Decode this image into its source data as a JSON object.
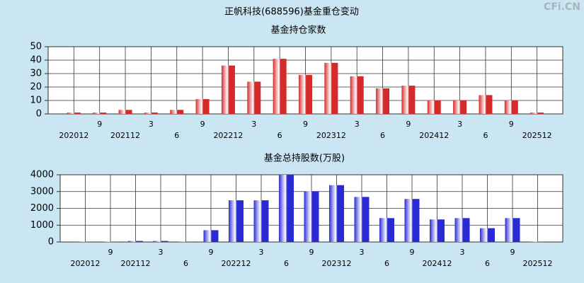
{
  "title": "正帆科技(688596)基金重仓变动",
  "watermark": "CFi.CN",
  "chart_data": [
    {
      "type": "bar",
      "title": "基金持仓家数",
      "categories": [
        "202012",
        "9",
        "202112",
        "3",
        "6",
        "9",
        "202212",
        "3",
        "6",
        "9",
        "202312",
        "3",
        "6",
        "9",
        "202412",
        "3",
        "6",
        "9",
        "202512"
      ],
      "values": [
        1,
        1,
        3,
        1,
        3,
        11,
        36,
        24,
        41,
        29,
        38,
        28,
        19,
        21,
        10,
        10,
        14,
        10,
        1
      ],
      "color": "#d42a2a",
      "ylim": [
        0,
        50
      ],
      "yticks": [
        0,
        10,
        20,
        30,
        40,
        50
      ],
      "grid": true
    },
    {
      "type": "bar",
      "title": "基金总持股数(万股)",
      "categories": [
        "202012",
        "9",
        "202112",
        "3",
        "6",
        "9",
        "202212",
        "3",
        "6",
        "9",
        "202312",
        "3",
        "6",
        "9",
        "202412",
        "3",
        "6",
        "9",
        "202512"
      ],
      "values": [
        20,
        20,
        60,
        60,
        20,
        700,
        2480,
        2480,
        4000,
        3020,
        3380,
        2680,
        1420,
        2560,
        1340,
        1420,
        820,
        1420,
        20
      ],
      "color": "#2a2ad4",
      "ylim": [
        0,
        4000
      ],
      "yticks": [
        0,
        1000,
        2000,
        3000,
        4000
      ],
      "grid": true
    }
  ]
}
